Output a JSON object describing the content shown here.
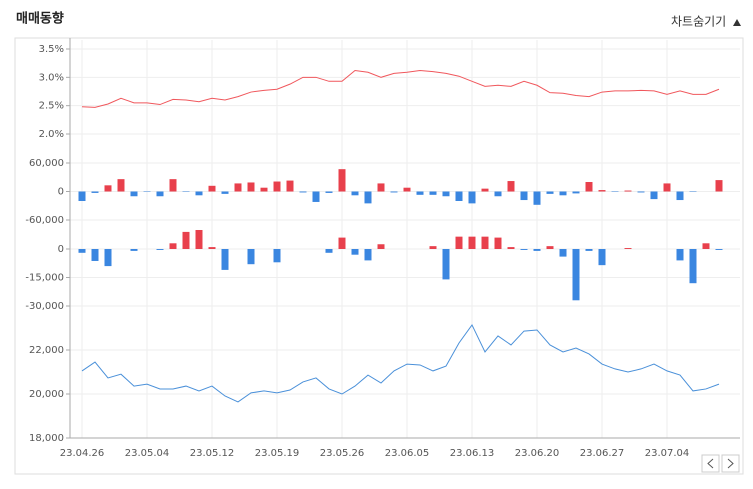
{
  "header": {
    "title": "매매동향",
    "toggle": "차트숨기기"
  },
  "chart_data": [
    {
      "type": "line",
      "color": "#f0575c",
      "ylim": [
        2.0,
        3.5
      ],
      "yticks": [
        {
          "value": 3.5,
          "label": "3.5%"
        },
        {
          "value": 3.0,
          "label": "3.0%"
        },
        {
          "value": 2.5,
          "label": "2.5%"
        },
        {
          "value": 2.0,
          "label": "2.0%"
        }
      ],
      "values": [
        2.48,
        2.47,
        2.53,
        2.63,
        2.55,
        2.55,
        2.52,
        2.61,
        2.6,
        2.57,
        2.63,
        2.6,
        2.66,
        2.74,
        2.77,
        2.79,
        2.88,
        3.0,
        3.0,
        2.93,
        2.93,
        3.12,
        3.09,
        3.0,
        3.07,
        3.09,
        3.12,
        3.1,
        3.07,
        3.02,
        2.93,
        2.84,
        2.86,
        2.84,
        2.93,
        2.86,
        2.73,
        2.72,
        2.68,
        2.66,
        2.74,
        2.76,
        2.76,
        2.77,
        2.76,
        2.7,
        2.76,
        2.7,
        2.7,
        2.79
      ]
    },
    {
      "type": "bar",
      "up_color": "#e8404c",
      "down_color": "#3a86e0",
      "ylim": [
        -60000,
        60000
      ],
      "yticks": [
        {
          "value": 60000,
          "label": "60,000"
        },
        0,
        {
          "value": -60000,
          "label": "-60,000"
        }
      ],
      "values": [
        -20000,
        -3000,
        13000,
        26000,
        -10000,
        -1000,
        -10000,
        26000,
        -1000,
        -8000,
        12000,
        -5000,
        17000,
        19000,
        8000,
        21000,
        23000,
        -2000,
        -22000,
        -3000,
        47000,
        -8000,
        -25000,
        17000,
        -2000,
        8000,
        -7000,
        -7000,
        -10000,
        -20000,
        -25000,
        6000,
        -10000,
        22000,
        -18000,
        -28000,
        -5000,
        -8000,
        -4000,
        20000,
        3000,
        -1000,
        2000,
        -2000,
        -16000,
        17000,
        -18000,
        -1000,
        0,
        24000
      ]
    },
    {
      "type": "bar",
      "up_color": "#e8404c",
      "down_color": "#3a86e0",
      "ylim": [
        -30000,
        10000
      ],
      "yticks": [
        0,
        {
          "value": -15000,
          "label": "-15,000"
        },
        {
          "value": -30000,
          "label": "-30,000"
        }
      ],
      "values": [
        -2000,
        -6300,
        -9000,
        0,
        -1000,
        0,
        -500,
        3000,
        9000,
        10000,
        1000,
        -11000,
        0,
        -8000,
        0,
        -7000,
        0,
        0,
        0,
        -2000,
        6000,
        -3000,
        -6000,
        2500,
        0,
        0,
        0,
        1500,
        -16000,
        6500,
        6500,
        6500,
        6000,
        1000,
        -500,
        -1000,
        1500,
        -4000,
        -27000,
        -1000,
        -8500,
        0,
        500,
        0,
        0,
        0,
        -6000,
        -18000,
        3000,
        -500
      ]
    },
    {
      "type": "line",
      "color": "#4a90d9",
      "ylim": [
        18000,
        23500
      ],
      "yticks": [
        {
          "value": 22000,
          "label": "22,000"
        },
        {
          "value": 20000,
          "label": "20,000"
        },
        {
          "value": 18000,
          "label": "18,000"
        }
      ],
      "categories": [
        "23.04.26",
        null,
        null,
        null,
        null,
        "23.05.04",
        null,
        null,
        null,
        null,
        "23.05.12",
        null,
        null,
        null,
        null,
        "23.05.19",
        null,
        null,
        null,
        null,
        "23.05.26",
        null,
        null,
        null,
        null,
        "23.06.05",
        null,
        null,
        null,
        null,
        "23.06.13",
        null,
        null,
        null,
        null,
        "23.06.20",
        null,
        null,
        null,
        null,
        "23.06.27",
        null,
        null,
        null,
        null,
        "23.07.04",
        null,
        null,
        null,
        null
      ],
      "values": [
        21050,
        21450,
        20730,
        20900,
        20360,
        20450,
        20230,
        20230,
        20360,
        20140,
        20360,
        19910,
        19640,
        20050,
        20140,
        20050,
        20180,
        20550,
        20730,
        20230,
        20000,
        20360,
        20860,
        20500,
        21050,
        21360,
        21320,
        21050,
        21270,
        22320,
        23140,
        21910,
        22640,
        22230,
        22860,
        22910,
        22230,
        21910,
        22090,
        21820,
        21360,
        21140,
        21000,
        21140,
        21360,
        21050,
        20860,
        20140,
        20230,
        20450
      ]
    }
  ]
}
